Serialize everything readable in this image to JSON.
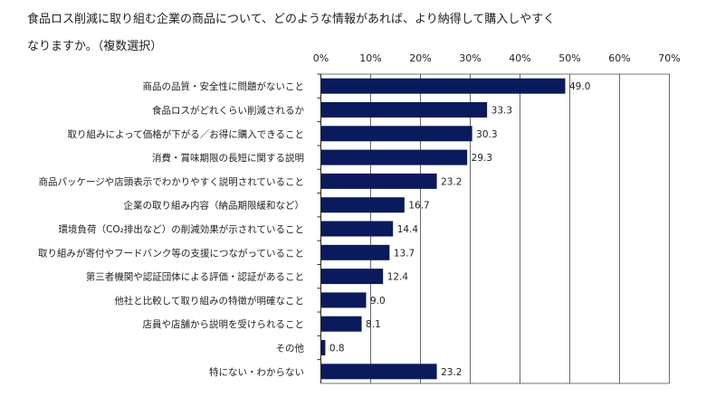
{
  "chart_data": {
    "type": "bar",
    "orientation": "horizontal",
    "title_lines": [
      "食品ロス削減に取り組む企業の商品について、どのような情報があれば、より納得して購入しやすく",
      "なりますか。（複数選択）"
    ],
    "categories": [
      "商品の品質・安全性に問題がないこと",
      "食品ロスがどれくらい削減されるか",
      "取り組みによって価格が下がる／お得に購入できること",
      "消費・賞味期限の長短に関する説明",
      "商品パッケージや店頭表示でわかりやすく説明されていること",
      "企業の取り組み内容（納品期限緩和など）",
      "環境負荷（CO₂排出など）の削減効果が示されていること",
      "取り組みが寄付やフードバンク等の支援につながっていること",
      "第三者機関や認証団体による評価・認証があること",
      "他社と比較して取り組みの特徴が明確なこと",
      "店員や店舗から説明を受けられること",
      "その他",
      "特にない・わからない"
    ],
    "values": [
      49.0,
      33.3,
      30.3,
      29.3,
      23.2,
      16.7,
      14.4,
      13.7,
      12.4,
      9.0,
      8.1,
      0.8,
      23.2
    ],
    "value_labels": [
      "49.0",
      "33.3",
      "30.3",
      "29.3",
      "23.2",
      "16.7",
      "14.4",
      "13.7",
      "12.4",
      "9.0",
      "8.1",
      "0.8",
      "23.2"
    ],
    "xlim": [
      0,
      70
    ],
    "xticks": [
      "0%",
      "10%",
      "20%",
      "30%",
      "40%",
      "50%",
      "60%",
      "70%"
    ],
    "axis_position": "top",
    "grid": true,
    "bar_color": "#0a1a5c"
  }
}
